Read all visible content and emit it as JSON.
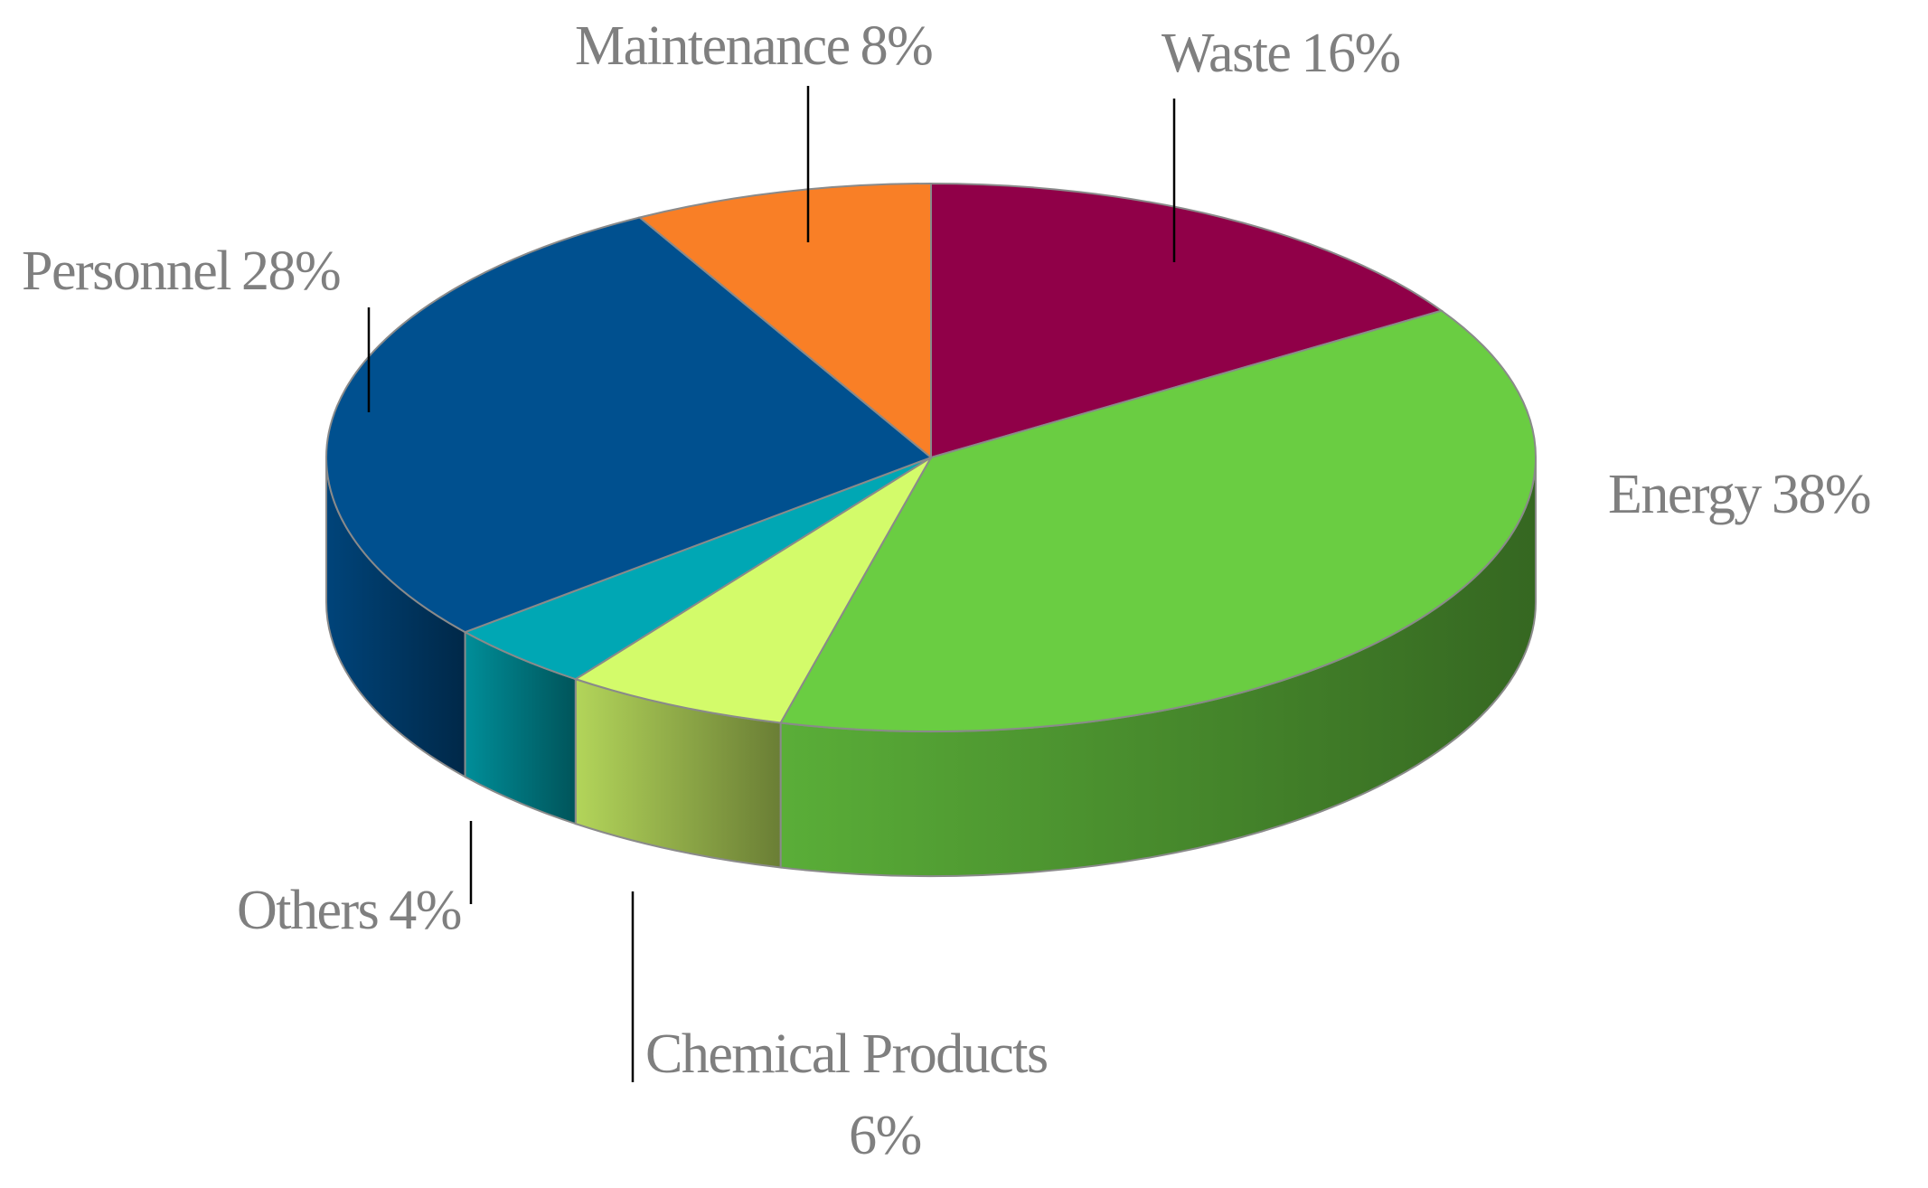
{
  "chart_data": {
    "type": "pie3d",
    "categories": [
      "Waste",
      "Energy",
      "Chemical Products",
      "Others",
      "Personnel",
      "Maintenance"
    ],
    "values": [
      16,
      38,
      6,
      4,
      28,
      8
    ],
    "value_labels": [
      "16%",
      "38%",
      "6%",
      "4%",
      "28%",
      "8%"
    ],
    "colors": [
      "#900048",
      "#6acd42",
      "#d3fb6a",
      "#00a7b4",
      "#00508f",
      "#f97f26"
    ]
  }
}
